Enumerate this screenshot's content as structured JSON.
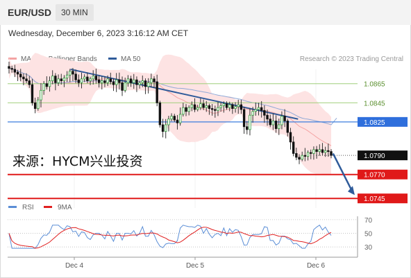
{
  "header": {
    "symbol": "EUR/USD",
    "timeframe": "30 MIN"
  },
  "datetime": "Wednesday, December 6, 2023 3:16:12 AM CET",
  "legend": {
    "items": [
      {
        "label": "MA 20 + Bollinger Bands",
        "color": "#f4a3a3"
      },
      {
        "label": "MA 50",
        "color": "#2f5b9a"
      }
    ],
    "research": "Research © 2023 Trading Central"
  },
  "watermark": "来源：HYCM兴业投资",
  "rsi_legend": {
    "items": [
      {
        "label": "RSI",
        "color": "#5b8ed6"
      },
      {
        "label": "9MA",
        "color": "#e02020"
      }
    ]
  },
  "chart_data": [
    {
      "type": "candlestick",
      "ylim": [
        1.0735,
        1.088
      ],
      "x_tick_labels": [
        "Dec 4",
        "Dec 5",
        "Dec 6"
      ],
      "levels": [
        {
          "label": "1.0865",
          "value": 1.0865,
          "style": "resistance-minor",
          "color": "#9fcf7a"
        },
        {
          "label": "1.0845",
          "value": 1.0845,
          "style": "resistance-minor",
          "color": "#9fcf7a"
        },
        {
          "label": "1.0825",
          "value": 1.0825,
          "style": "pivot",
          "color": "#3b7ddd"
        },
        {
          "label": "1.0790",
          "value": 1.079,
          "style": "last-price",
          "color": "#222222"
        },
        {
          "label": "1.0770",
          "value": 1.077,
          "style": "support",
          "color": "#e01919"
        },
        {
          "label": "1.0745",
          "value": 1.0745,
          "style": "support",
          "color": "#e01919"
        }
      ],
      "trendline": {
        "from": [
          0.18,
          1.088
        ],
        "to": [
          0.83,
          1.0828
        ],
        "color": "#2f5b9a"
      },
      "forecast_arrow": {
        "from": [
          0.93,
          1.0792
        ],
        "to": [
          0.99,
          1.075
        ],
        "color": "#2f5b9a"
      },
      "series": [
        {
          "name": "MA 20 + Bollinger Bands",
          "color": "#f4a3a3"
        },
        {
          "name": "MA 50",
          "color": "#2f5b9a"
        }
      ],
      "closes": [
        1.0881,
        1.088,
        1.0877,
        1.0875,
        1.0872,
        1.087,
        1.0868,
        1.0864,
        1.0845,
        1.0839,
        1.0848,
        1.0858,
        1.0865,
        1.0862,
        1.0868,
        1.0873,
        1.0866,
        1.087,
        1.0868,
        1.0871,
        1.0874,
        1.0878,
        1.0875,
        1.0869,
        1.0866,
        1.087,
        1.0872,
        1.0868,
        1.087,
        1.0873,
        1.0869,
        1.0866,
        1.0868,
        1.0866,
        1.087,
        1.0867,
        1.0864,
        1.0869,
        1.0866,
        1.0858,
        1.0866,
        1.087,
        1.0866,
        1.0869,
        1.0864,
        1.0866,
        1.0868,
        1.0862,
        1.0866,
        1.087,
        1.0867,
        1.0845,
        1.0822,
        1.0815,
        1.0822,
        1.0828,
        1.0831,
        1.0827,
        1.0824,
        1.0833,
        1.084,
        1.0836,
        1.084,
        1.0843,
        1.0838,
        1.084,
        1.0844,
        1.084,
        1.0842,
        1.0839,
        1.0838,
        1.0837,
        1.084,
        1.0842,
        1.0844,
        1.084,
        1.0843,
        1.0839,
        1.0841,
        1.0843,
        1.0838,
        1.082,
        1.0817,
        1.0832,
        1.0836,
        1.0838,
        1.084,
        1.0837,
        1.0832,
        1.0828,
        1.0822,
        1.0826,
        1.0818,
        1.0822,
        1.0831,
        1.0826,
        1.0814,
        1.0804,
        1.0792,
        1.0788,
        1.0786,
        1.079,
        1.0789,
        1.0793,
        1.0792,
        1.0796,
        1.0794,
        1.0796,
        1.0793,
        1.0795,
        1.0794,
        1.079
      ]
    },
    {
      "type": "line",
      "ylim": [
        20,
        75
      ],
      "y_tick_labels": [
        "70",
        "50",
        "30"
      ],
      "y_ticks": [
        70,
        50,
        30
      ],
      "series": [
        {
          "name": "RSI",
          "color": "#5b8ed6"
        },
        {
          "name": "9MA",
          "color": "#e02020"
        }
      ]
    }
  ]
}
